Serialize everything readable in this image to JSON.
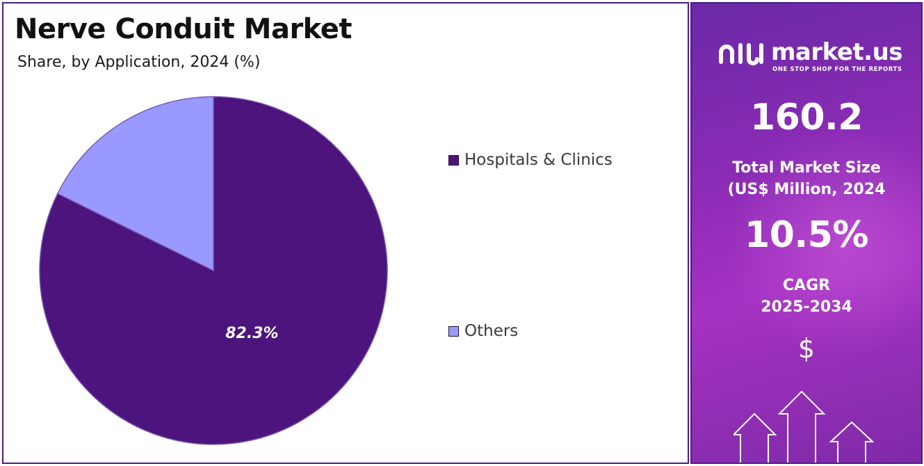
{
  "header": {
    "title": "Nerve Conduit Market",
    "subtitle": "Share, by Application, 2024 (%)"
  },
  "chart_data": {
    "type": "pie",
    "title": "Nerve Conduit Market",
    "subtitle": "Share, by Application, 2024 (%)",
    "slices": [
      {
        "label": "Hospitals & Clinics",
        "value": 82.3,
        "color": "#4c147c",
        "data_label": "82.3%"
      },
      {
        "label": "Others",
        "value": 17.7,
        "color": "#9999ff",
        "data_label": ""
      }
    ],
    "legend_position": "right"
  },
  "sidebar": {
    "brand": "market.us",
    "tagline": "ONE STOP SHOP FOR THE REPORTS",
    "market_size": "160.2",
    "market_size_label_1": "Total Market Size",
    "market_size_label_2": "(US$ Million, 2024",
    "cagr_value": "10.5%",
    "cagr_label_1": "CAGR",
    "cagr_label_2": "2025-2034",
    "currency_symbol": "$",
    "icons": [
      "market-us-logo-icon",
      "growth-arrows-icon"
    ]
  },
  "colors": {
    "border": "#4a1c86",
    "panel_accent": "#8b2bb5",
    "hospitals": "#4c147c",
    "others": "#9999ff"
  }
}
